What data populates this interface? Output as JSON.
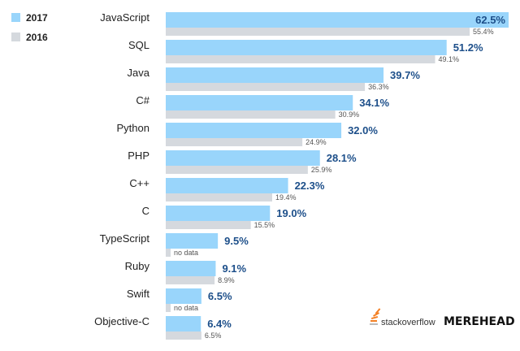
{
  "legend": [
    {
      "label": "2017",
      "color": "#99d5fb"
    },
    {
      "label": "2016",
      "color": "#d5d9de"
    }
  ],
  "chart_data": {
    "type": "bar",
    "orientation": "horizontal",
    "xlim": [
      0,
      62.5
    ],
    "grid": false,
    "legend_position": "top-left",
    "categories": [
      "JavaScript",
      "SQL",
      "Java",
      "C#",
      "Python",
      "PHP",
      "C++",
      "C",
      "TypeScript",
      "Ruby",
      "Swift",
      "Objective-C"
    ],
    "series": [
      {
        "name": "2017",
        "color": "#99d5fb",
        "values": [
          62.5,
          51.2,
          39.7,
          34.1,
          32.0,
          28.1,
          22.3,
          19.0,
          9.5,
          9.1,
          6.5,
          6.4
        ],
        "labels": [
          "62.5%",
          "51.2%",
          "39.7%",
          "34.1%",
          "32.0%",
          "28.1%",
          "22.3%",
          "19.0%",
          "9.5%",
          "9.1%",
          "6.5%",
          "6.4%"
        ]
      },
      {
        "name": "2016",
        "color": "#d5d9de",
        "values": [
          55.4,
          49.1,
          36.3,
          30.9,
          24.9,
          25.9,
          19.4,
          15.5,
          null,
          8.9,
          null,
          6.5
        ],
        "labels": [
          "55.4%",
          "49.1%",
          "36.3%",
          "30.9%",
          "24.9%",
          "25.9%",
          "19.4%",
          "15.5%",
          "no data",
          "8.9%",
          "no data",
          "6.5%"
        ]
      }
    ]
  },
  "branding": {
    "stackoverflow": "stackoverflow",
    "merehead": "MEREHEAD"
  }
}
